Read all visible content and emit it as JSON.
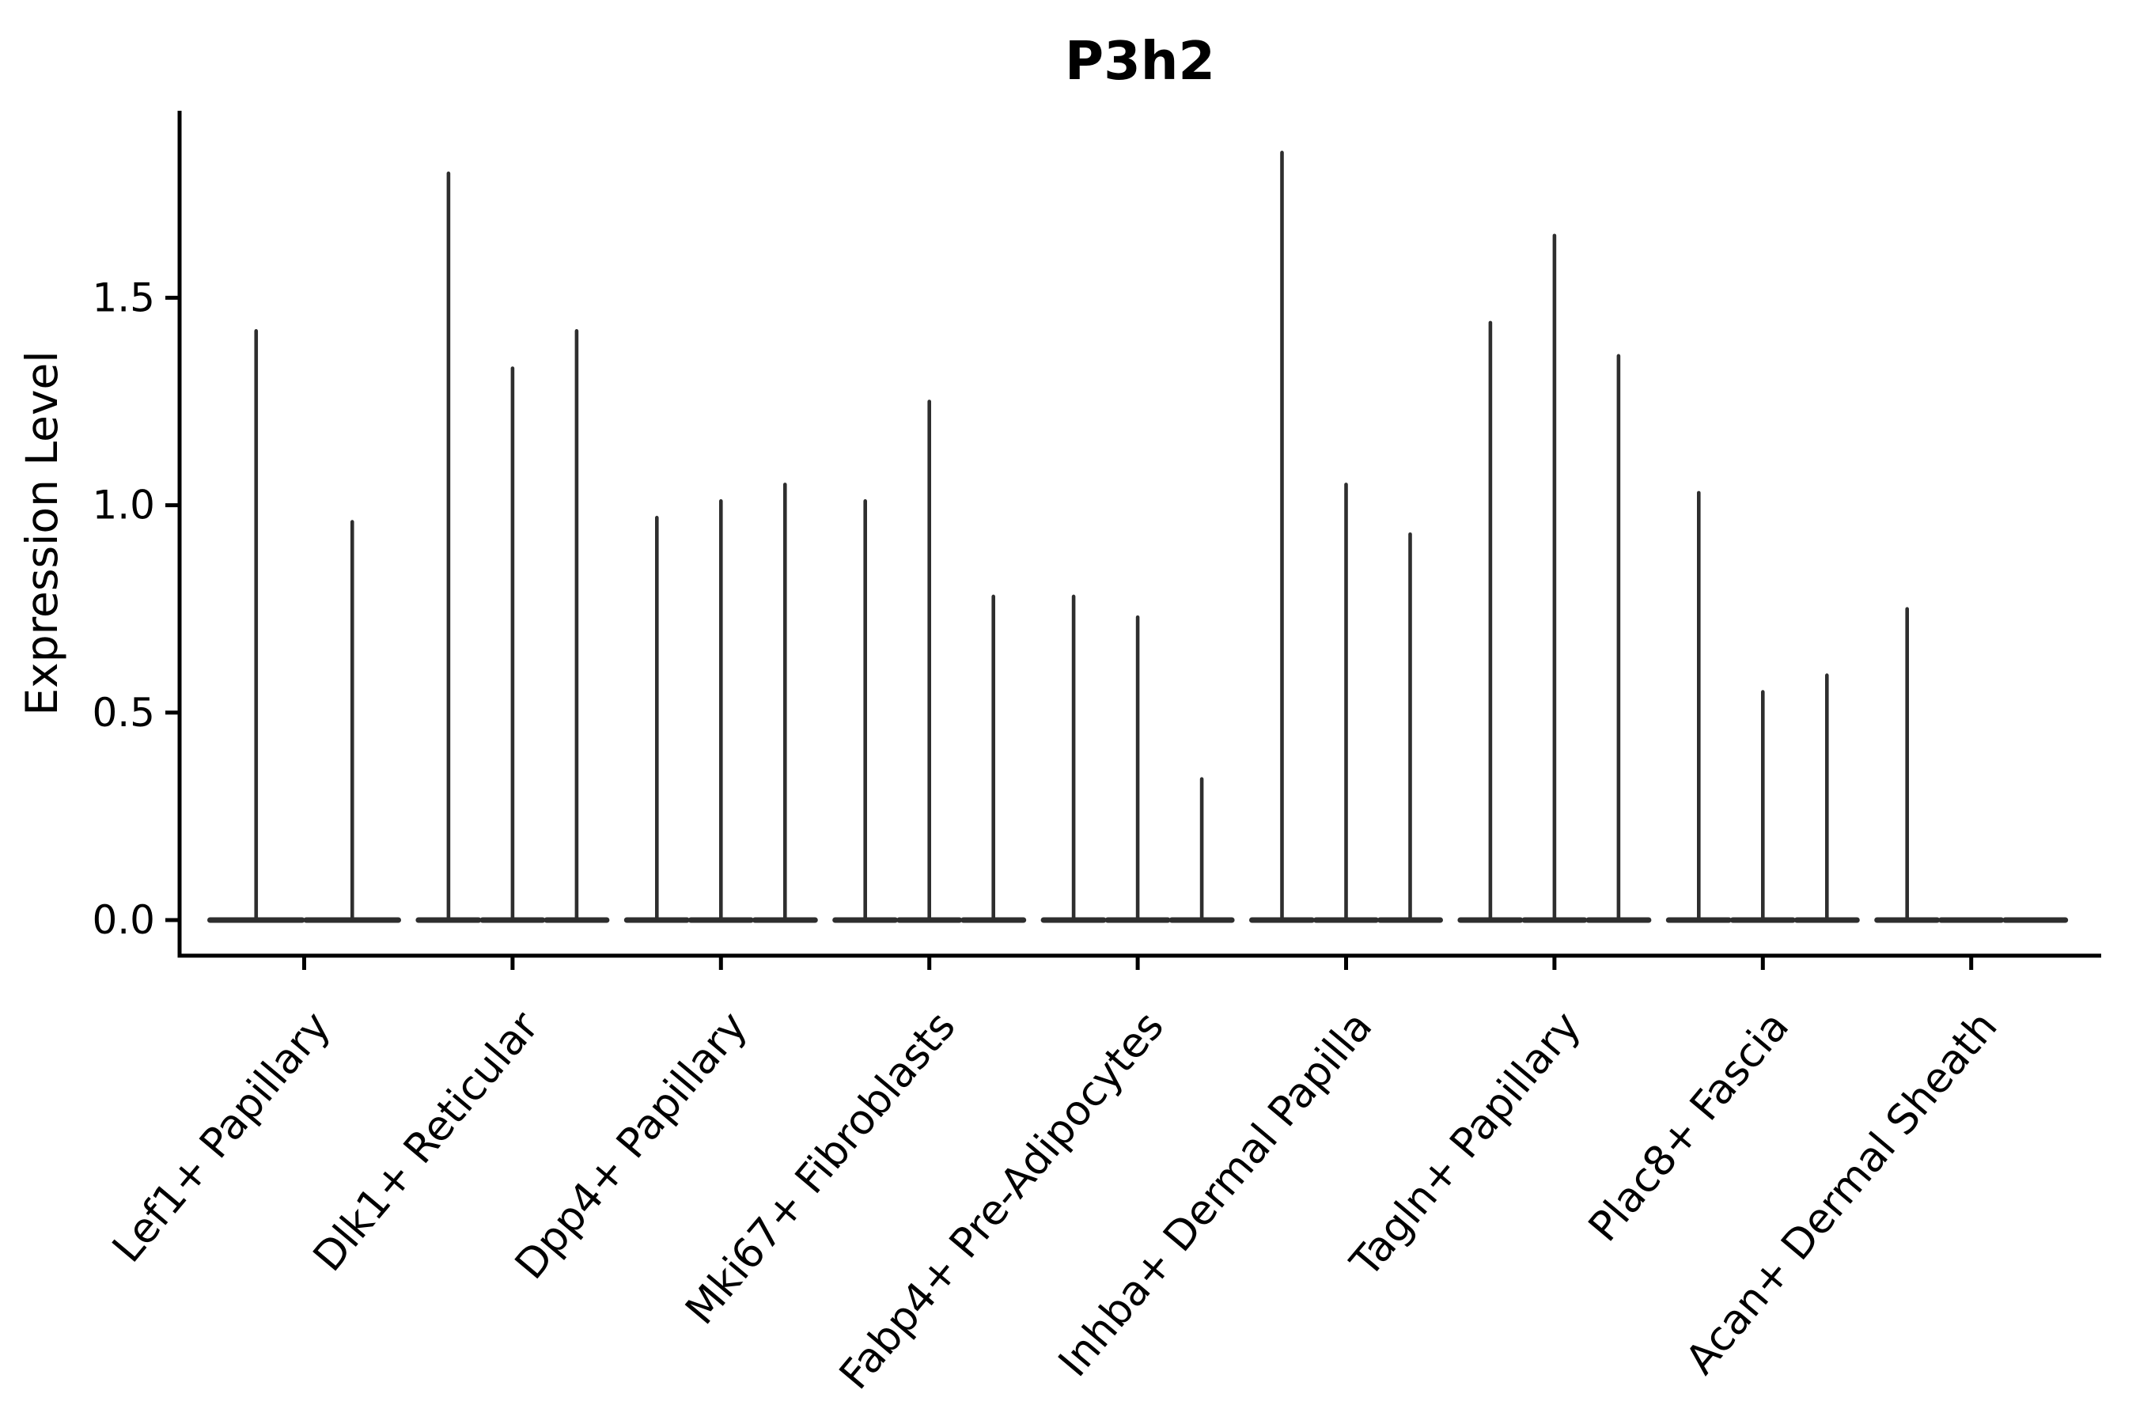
{
  "figure": {
    "title": "P3h2",
    "ylabel": "Expression Level"
  },
  "chart_data": {
    "type": "violin",
    "title": "P3h2",
    "xlabel": "",
    "ylabel": "Expression Level",
    "categories": [
      "Lef1+ Papillary",
      "Dlk1+ Reticular",
      "Dpp4+ Papillary",
      "Mki67+ Fibroblasts",
      "Fabp4+ Pre-Adipocytes",
      "Inhba+ Dermal Papilla",
      "Tagln+ Papillary",
      "Plac8+ Fascia",
      "Acan+ Dermal Sheath"
    ],
    "series": [
      {
        "category": "Lef1+ Papillary",
        "violin_peaks": [
          1.42,
          0.96
        ]
      },
      {
        "category": "Dlk1+ Reticular",
        "violin_peaks": [
          1.8,
          1.33,
          1.42
        ]
      },
      {
        "category": "Dpp4+ Papillary",
        "violin_peaks": [
          0.97,
          1.01,
          1.05
        ]
      },
      {
        "category": "Mki67+ Fibroblasts",
        "violin_peaks": [
          1.01,
          1.25,
          0.78
        ]
      },
      {
        "category": "Fabp4+ Pre-Adipocytes",
        "violin_peaks": [
          0.78,
          0.73,
          0.34
        ]
      },
      {
        "category": "Inhba+ Dermal Papilla",
        "violin_peaks": [
          1.85,
          1.05,
          0.93
        ]
      },
      {
        "category": "Tagln+ Papillary",
        "violin_peaks": [
          1.44,
          1.65,
          1.36
        ]
      },
      {
        "category": "Plac8+ Fascia",
        "violin_peaks": [
          1.03,
          0.55,
          0.59
        ]
      },
      {
        "category": "Acan+ Dermal Sheath",
        "violin_peaks": [
          0.75,
          0.0,
          0.0
        ]
      }
    ],
    "yticks": [
      0.0,
      0.5,
      1.0,
      1.5
    ],
    "ylim": [
      -0.09,
      1.95
    ],
    "grid": false,
    "legend": "none",
    "x_tick_rotation_deg": 50,
    "violin_color": "#2e2e2e",
    "axis_color": "#000000",
    "note": "Needle-thin violins: nearly all density at 0 (flat capsule on the baseline) with a thin spike up to each violin's peak expression value; violins with peak 0.0 are flat."
  }
}
